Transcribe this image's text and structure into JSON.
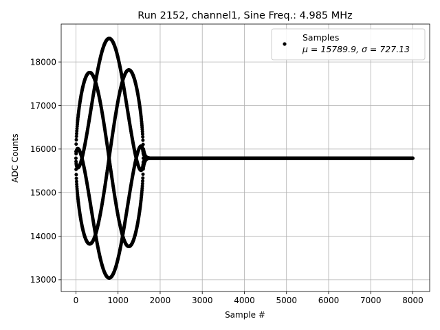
{
  "chart_data": {
    "type": "scatter",
    "title": "Run 2152, channel1, Sine Freq.: 4.985 MHz",
    "xlabel": "Sample #",
    "ylabel": "ADC Counts",
    "xlim": [
      -350,
      8400
    ],
    "ylim": [
      12730,
      18870
    ],
    "xticks": [
      0,
      1000,
      2000,
      3000,
      4000,
      5000,
      6000,
      7000,
      8000
    ],
    "yticks": [
      13000,
      14000,
      15000,
      16000,
      17000,
      18000
    ],
    "grid": true,
    "legend": {
      "position": "top-right",
      "entries": [
        {
          "name": "Samples",
          "stats": "μ = 15789.9, σ = 727.13",
          "color": "#000000",
          "marker": "circle"
        }
      ]
    },
    "series": [
      {
        "name": "Samples",
        "color": "#000000",
        "model": {
          "n_samples": 8000,
          "baseline": 15790,
          "burst_start": 0,
          "burst_end": 1600,
          "peak_amplitude": 2750,
          "envelope_peak_sample": 800,
          "ringdown_end": 1750,
          "ringdown_amplitude": 250
        }
      }
    ]
  }
}
